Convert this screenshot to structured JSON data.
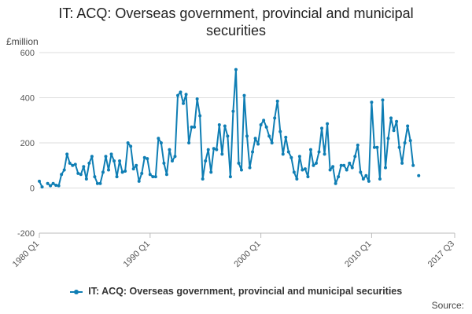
{
  "title_line1": "IT: ACQ: Overseas government, provincial and municipal",
  "title_line2": "securities",
  "source_label": "Source:",
  "chart_data": {
    "type": "line",
    "title": "IT: ACQ: Overseas government, provincial and municipal securities",
    "ylabel": "£million",
    "xlabel": "",
    "ylim": [
      -200,
      600
    ],
    "yticks": [
      -200,
      0,
      200,
      400,
      600
    ],
    "x_start": "1980 Q1",
    "x_end": "2017 Q3",
    "x_ticks": [
      "1980 Q1",
      "1990 Q1",
      "2000 Q1",
      "2010 Q1",
      "2017 Q3"
    ],
    "grid": true,
    "legend_position": "bottom",
    "color": "#0f7eb4",
    "series": [
      {
        "name": "IT: ACQ: Overseas government, provincial and municipal securities",
        "start": "1980 Q1",
        "values": [
          30,
          5,
          null,
          20,
          10,
          20,
          12,
          10,
          60,
          80,
          150,
          110,
          100,
          105,
          65,
          60,
          95,
          40,
          110,
          140,
          50,
          20,
          20,
          70,
          140,
          80,
          150,
          120,
          50,
          120,
          70,
          75,
          200,
          185,
          85,
          100,
          30,
          65,
          135,
          130,
          60,
          50,
          50,
          220,
          200,
          110,
          60,
          170,
          120,
          140,
          410,
          425,
          375,
          415,
          200,
          270,
          270,
          395,
          320,
          40,
          120,
          170,
          70,
          175,
          170,
          280,
          150,
          275,
          230,
          50,
          340,
          525,
          110,
          80,
          410,
          230,
          90,
          160,
          220,
          195,
          280,
          300,
          270,
          230,
          200,
          310,
          385,
          250,
          150,
          225,
          160,
          135,
          70,
          40,
          140,
          80,
          85,
          50,
          170,
          100,
          110,
          160,
          265,
          150,
          285,
          80,
          95,
          20,
          50,
          100,
          100,
          80,
          110,
          90,
          140,
          190,
          70,
          40,
          55,
          30,
          380,
          180,
          180,
          40,
          390,
          90,
          220,
          310,
          255,
          295,
          180,
          110,
          200,
          275,
          210,
          100,
          null,
          55
        ]
      }
    ]
  }
}
